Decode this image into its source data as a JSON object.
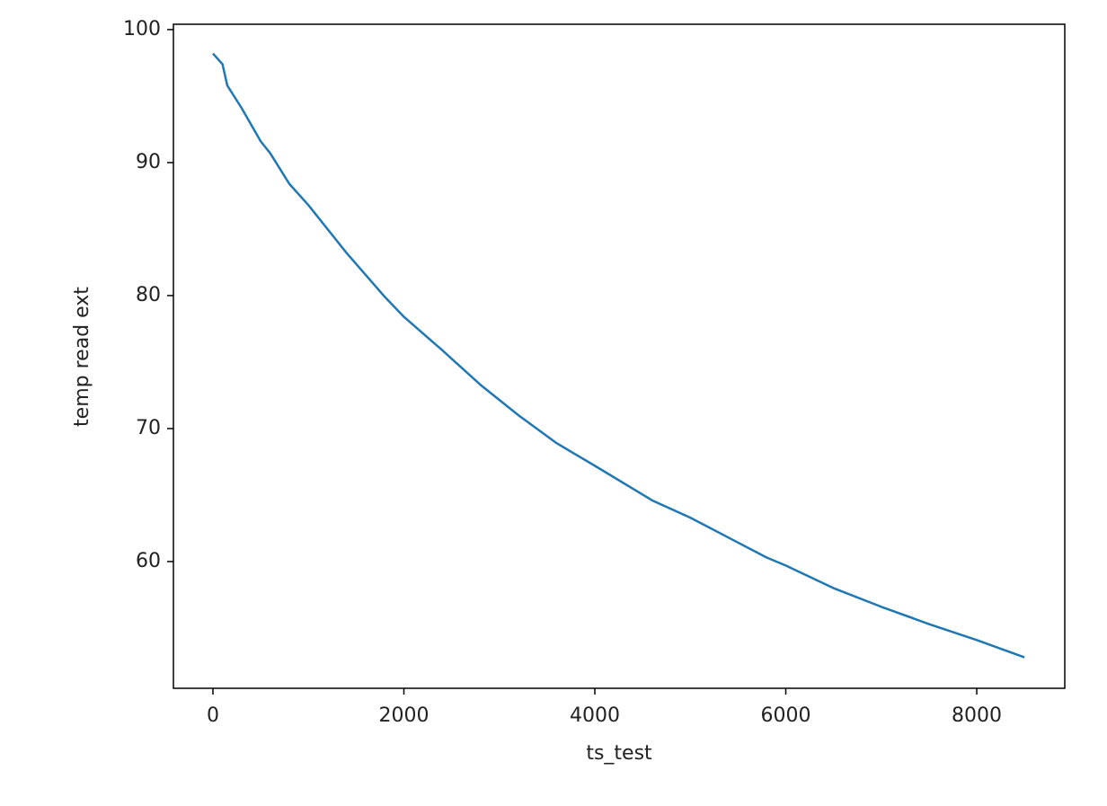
{
  "chart_data": {
    "type": "line",
    "x_label": "ts_test",
    "y_label": "temp read ext",
    "x": [
      0,
      100,
      150,
      300,
      500,
      600,
      800,
      1000,
      1400,
      1800,
      2000,
      2400,
      2800,
      3200,
      3600,
      4000,
      4600,
      5000,
      5400,
      5800,
      6000,
      6500,
      7000,
      7500,
      8000,
      8500
    ],
    "series": [
      {
        "color": "#1f77b4",
        "values": [
          98.2,
          97.4,
          95.8,
          94.1,
          91.6,
          90.7,
          88.4,
          86.8,
          83.2,
          79.9,
          78.4,
          75.9,
          73.3,
          71.0,
          68.9,
          67.2,
          64.6,
          63.3,
          61.8,
          60.3,
          59.7,
          58.0,
          56.6,
          55.3,
          54.1,
          52.8
        ]
      }
    ],
    "xlim": [
      -414,
      8922
    ],
    "ylim": [
      50.47,
      100.4
    ],
    "xticks": [
      0,
      2000,
      4000,
      6000,
      8000
    ],
    "yticks": [
      60,
      70,
      80,
      90,
      100
    ],
    "grid": false
  }
}
